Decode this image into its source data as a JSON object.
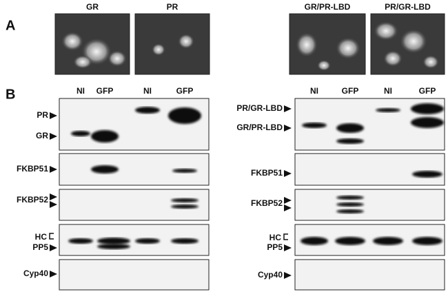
{
  "panel_a": {
    "label": "A",
    "images": [
      "GR",
      "PR",
      "GR/PR-LBD",
      "PR/GR-LBD"
    ]
  },
  "panel_b": {
    "label": "B",
    "blots": [
      {
        "lanes": [
          "NI",
          "GFP",
          "NI",
          "GFP"
        ],
        "rows": [
          "PR",
          "GR",
          "FKBP51",
          "FKBP52",
          "HC",
          "PP5",
          "Cyp40"
        ]
      },
      {
        "lanes": [
          "NI",
          "GFP",
          "NI",
          "GFP"
        ],
        "rows": [
          "PR/GR-LBD",
          "GR/PR-LBD",
          "FKBP51",
          "FKBP52",
          "HC",
          "PP5",
          "Cyp40"
        ]
      }
    ]
  }
}
